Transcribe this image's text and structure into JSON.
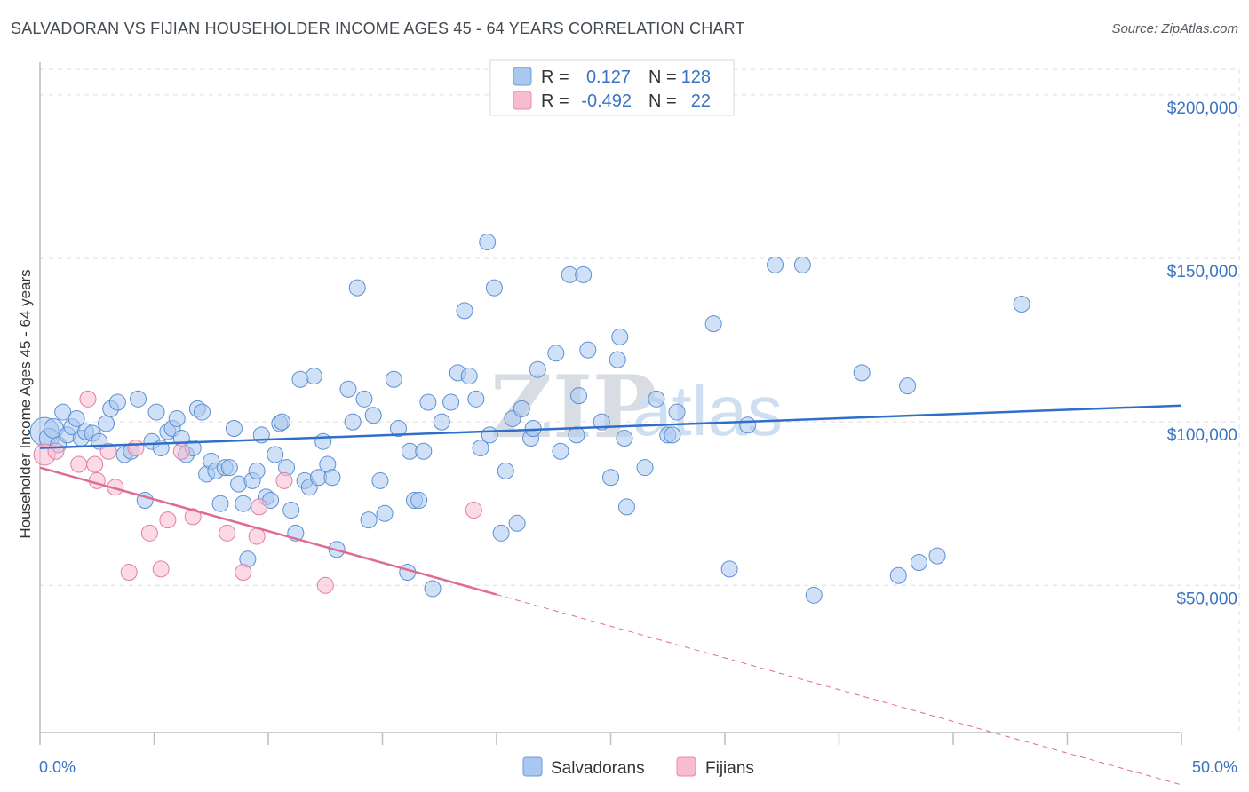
{
  "title": "SALVADORAN VS FIJIAN HOUSEHOLDER INCOME AGES 45 - 64 YEARS CORRELATION CHART",
  "source": "Source: ZipAtlas.com",
  "watermark": {
    "zip": "ZIP",
    "atlas": "atlas"
  },
  "legend": {
    "rows": [
      {
        "r_label": "R =",
        "r_value": "0.127",
        "n_label": "N =",
        "n_value": "128",
        "color": "#a9c8f0"
      },
      {
        "r_label": "R =",
        "r_value": "-0.492",
        "n_label": "N =",
        "n_value": "22",
        "color": "#f7bcd0"
      }
    ]
  },
  "bottom_legend": {
    "salvadorans": "Salvadorans",
    "fijians": "Fijians"
  },
  "colors": {
    "blue_line": "#2f6fca",
    "blue_fill": "#a9c8f0",
    "pink_line": "#e06a95",
    "pink_fill": "#f7bcd0",
    "grid": "#d9dde3"
  },
  "chart_data": {
    "type": "scatter",
    "title": "SALVADORAN VS FIJIAN HOUSEHOLDER INCOME AGES 45 - 64 YEARS CORRELATION CHART",
    "xlabel": "",
    "ylabel": "Householder Income Ages 45 - 64 years",
    "xlim": [
      0,
      50
    ],
    "ylim": [
      5000,
      210000
    ],
    "x_tick_labels": [
      "0.0%",
      "50.0%"
    ],
    "y_tick_labels": [
      "$50,000",
      "$100,000",
      "$150,000",
      "$200,000"
    ],
    "y_ticks": [
      50000,
      100000,
      150000,
      200000
    ],
    "grid": true,
    "legend_position": "top-center",
    "series": [
      {
        "name": "Salvadorans",
        "color": "#a9c8f0",
        "trend": {
          "x": [
            0,
            50
          ],
          "y": [
            92000,
            105000
          ],
          "solid_until": 50
        },
        "points": [
          [
            0.2,
            97000
          ],
          [
            0.4,
            95000
          ],
          [
            0.6,
            98000
          ],
          [
            0.8,
            93000
          ],
          [
            1.0,
            103000
          ],
          [
            1.2,
            96000
          ],
          [
            1.4,
            98500
          ],
          [
            1.6,
            101000
          ],
          [
            1.8,
            95000
          ],
          [
            2.0,
            97000
          ],
          [
            2.3,
            96500
          ],
          [
            2.6,
            94000
          ],
          [
            2.9,
            99500
          ],
          [
            3.1,
            104000
          ],
          [
            3.4,
            106000
          ],
          [
            3.7,
            90000
          ],
          [
            4.0,
            91000
          ],
          [
            4.3,
            107000
          ],
          [
            4.6,
            76000
          ],
          [
            4.9,
            94000
          ],
          [
            5.1,
            103000
          ],
          [
            5.3,
            92000
          ],
          [
            5.6,
            97000
          ],
          [
            5.8,
            98000
          ],
          [
            6.0,
            101000
          ],
          [
            6.2,
            95000
          ],
          [
            6.4,
            90000
          ],
          [
            6.7,
            92000
          ],
          [
            6.9,
            104000
          ],
          [
            7.1,
            103000
          ],
          [
            7.3,
            84000
          ],
          [
            7.5,
            88000
          ],
          [
            7.7,
            85000
          ],
          [
            7.9,
            75000
          ],
          [
            8.1,
            86000
          ],
          [
            8.3,
            86000
          ],
          [
            8.5,
            98000
          ],
          [
            8.7,
            81000
          ],
          [
            8.9,
            75000
          ],
          [
            9.1,
            58000
          ],
          [
            9.3,
            82000
          ],
          [
            9.5,
            85000
          ],
          [
            9.7,
            96000
          ],
          [
            9.9,
            77000
          ],
          [
            10.1,
            76000
          ],
          [
            10.3,
            90000
          ],
          [
            10.5,
            99500
          ],
          [
            10.6,
            100000
          ],
          [
            10.8,
            86000
          ],
          [
            11.0,
            73000
          ],
          [
            11.2,
            66000
          ],
          [
            11.4,
            113000
          ],
          [
            11.6,
            82000
          ],
          [
            11.8,
            80000
          ],
          [
            12.0,
            114000
          ],
          [
            12.2,
            83000
          ],
          [
            12.4,
            94000
          ],
          [
            12.6,
            87000
          ],
          [
            12.8,
            83000
          ],
          [
            13.0,
            61000
          ],
          [
            13.5,
            110000
          ],
          [
            13.7,
            100000
          ],
          [
            13.9,
            141000
          ],
          [
            14.2,
            107000
          ],
          [
            14.4,
            70000
          ],
          [
            14.6,
            102000
          ],
          [
            14.9,
            82000
          ],
          [
            15.1,
            72000
          ],
          [
            15.5,
            113000
          ],
          [
            15.7,
            98000
          ],
          [
            16.1,
            54000
          ],
          [
            16.2,
            91000
          ],
          [
            16.4,
            76000
          ],
          [
            16.6,
            76000
          ],
          [
            16.8,
            91000
          ],
          [
            17.0,
            106000
          ],
          [
            17.2,
            49000
          ],
          [
            17.6,
            100000
          ],
          [
            18.0,
            106000
          ],
          [
            18.3,
            115000
          ],
          [
            18.6,
            134000
          ],
          [
            18.8,
            114000
          ],
          [
            19.1,
            107000
          ],
          [
            19.3,
            92000
          ],
          [
            19.6,
            155000
          ],
          [
            19.7,
            96000
          ],
          [
            19.9,
            141000
          ],
          [
            20.2,
            66000
          ],
          [
            20.4,
            85000
          ],
          [
            20.7,
            101000
          ],
          [
            20.9,
            69000
          ],
          [
            21.1,
            104000
          ],
          [
            21.5,
            95000
          ],
          [
            21.6,
            98000
          ],
          [
            21.8,
            116000
          ],
          [
            22.6,
            121000
          ],
          [
            22.8,
            91000
          ],
          [
            23.2,
            145000
          ],
          [
            23.5,
            96000
          ],
          [
            23.6,
            108000
          ],
          [
            23.8,
            145000
          ],
          [
            24.0,
            122000
          ],
          [
            24.6,
            100000
          ],
          [
            25.0,
            83000
          ],
          [
            25.3,
            119000
          ],
          [
            25.4,
            126000
          ],
          [
            25.6,
            95000
          ],
          [
            25.7,
            74000
          ],
          [
            26.5,
            86000
          ],
          [
            27.0,
            107000
          ],
          [
            27.5,
            96000
          ],
          [
            27.7,
            96000
          ],
          [
            27.9,
            103000
          ],
          [
            29.5,
            130000
          ],
          [
            30.2,
            55000
          ],
          [
            31.0,
            99000
          ],
          [
            32.2,
            148000
          ],
          [
            33.4,
            148000
          ],
          [
            33.9,
            47000
          ],
          [
            36.0,
            115000
          ],
          [
            37.6,
            53000
          ],
          [
            38.0,
            111000
          ],
          [
            38.5,
            57000
          ],
          [
            39.3,
            59000
          ],
          [
            43.0,
            136000
          ]
        ]
      },
      {
        "name": "Fijians",
        "color": "#f7bcd0",
        "trend": {
          "x": [
            0,
            50
          ],
          "y": [
            86000,
            -11000
          ],
          "solid_until": 20
        },
        "points": [
          [
            0.2,
            90000
          ],
          [
            0.7,
            91000
          ],
          [
            1.7,
            87000
          ],
          [
            2.1,
            107000
          ],
          [
            2.4,
            87000
          ],
          [
            2.5,
            82000
          ],
          [
            3.0,
            91000
          ],
          [
            3.3,
            80000
          ],
          [
            3.9,
            54000
          ],
          [
            4.2,
            92000
          ],
          [
            4.8,
            66000
          ],
          [
            5.3,
            55000
          ],
          [
            5.6,
            70000
          ],
          [
            6.2,
            91000
          ],
          [
            6.7,
            71000
          ],
          [
            8.2,
            66000
          ],
          [
            8.9,
            54000
          ],
          [
            9.5,
            65000
          ],
          [
            9.6,
            74000
          ],
          [
            10.7,
            82000
          ],
          [
            12.5,
            50000
          ],
          [
            19.0,
            73000
          ]
        ]
      }
    ]
  }
}
